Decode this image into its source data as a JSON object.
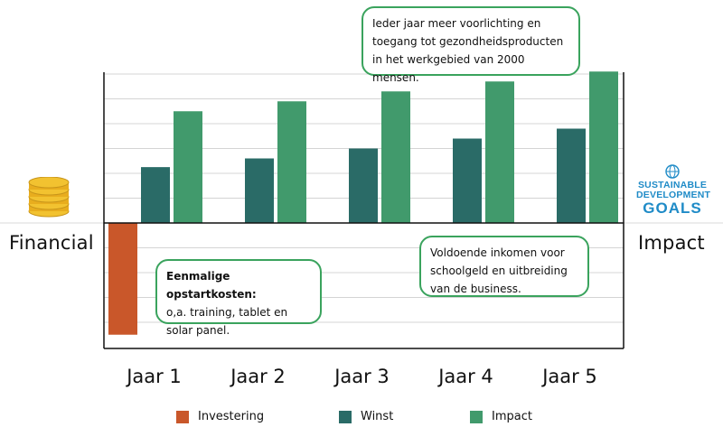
{
  "chart_data": {
    "type": "bar",
    "categories": [
      "Jaar 1",
      "Jaar 2",
      "Jaar 3",
      "Jaar 4",
      "Jaar 5"
    ],
    "series": [
      {
        "name": "Investering",
        "color": "#c9572a",
        "values": [
          -4.5,
          0,
          0,
          0,
          0
        ]
      },
      {
        "name": "Winst",
        "color": "#2a6b67",
        "values": [
          2.25,
          2.6,
          3.0,
          3.4,
          3.8
        ]
      },
      {
        "name": "Impact",
        "color": "#419a6c",
        "values": [
          4.5,
          4.9,
          5.3,
          5.7,
          6.1
        ]
      }
    ],
    "ylim": [
      -5,
      6.1
    ],
    "grid": true,
    "axis_left": "Financial",
    "axis_right": "Impact",
    "legend": "bottom"
  },
  "callouts": {
    "top": "Ieder jaar meer voorlichting en toegang tot gezondheidsproducten in het werkgebied van 2000 mensen.",
    "middle": "Voldoende inkomen voor schoolgeld en uitbreiding van de business.",
    "low_title": "Eenmalige opstartkosten:",
    "low_body": "o,a. training, tablet en solar panel."
  },
  "sdg_logo": {
    "line1": "SUSTAINABLE",
    "line2": "DEVELOPMENT",
    "line3": "GOALS"
  },
  "icons": {
    "left": "coins-stack-icon",
    "right": "un-globe-icon"
  }
}
